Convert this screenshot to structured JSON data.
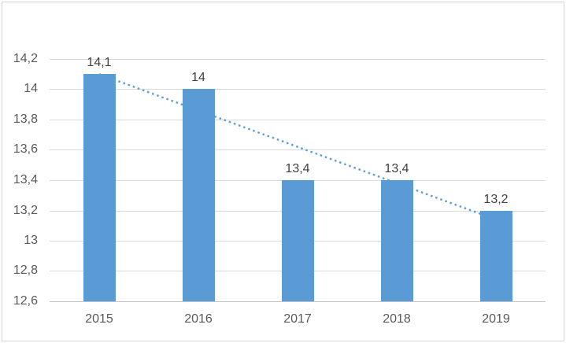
{
  "chart_data": {
    "type": "bar",
    "title": "",
    "xlabel": "",
    "ylabel": "",
    "categories": [
      "2015",
      "2016",
      "2017",
      "2018",
      "2019"
    ],
    "values": [
      14.1,
      14.0,
      13.4,
      13.4,
      13.2
    ],
    "data_labels": [
      "14,1",
      "14",
      "13,4",
      "13,4",
      "13,2"
    ],
    "y_tick_labels": [
      "12,6",
      "12,8",
      "13",
      "13,2",
      "13,4",
      "13,6",
      "13,8",
      "14",
      "14,2"
    ],
    "y_tick_values": [
      12.6,
      12.8,
      13.0,
      13.2,
      13.4,
      13.6,
      13.8,
      14.0,
      14.2
    ],
    "ylim": [
      12.6,
      14.2
    ],
    "grid": true,
    "legend": "none",
    "decimal_separator": ",",
    "bar_color": "#5b9bd5",
    "trendline": {
      "type": "linear",
      "style": "dotted",
      "color": "#5b9bd5",
      "start_value": 14.1,
      "end_value": 13.14
    }
  },
  "colors": {
    "background": "#ffffff",
    "border": "#d6d6d6",
    "gridline": "#dadada",
    "axis_line": "#c3c3c3",
    "axis_text": "#595959",
    "data_label_text": "#404040"
  }
}
